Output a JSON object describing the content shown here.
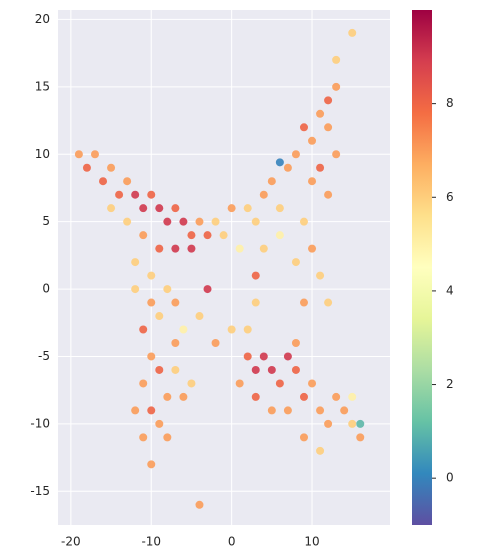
{
  "chart_data": {
    "type": "scatter",
    "x": [
      -19,
      -18,
      -17,
      -16,
      -15,
      -14,
      -13,
      -12,
      -11,
      -10,
      -9,
      -8,
      -7,
      -6,
      -5,
      -4,
      -3,
      -2,
      -13,
      -11,
      -9,
      -7,
      -5,
      -15,
      -12,
      -10,
      -12,
      -10,
      -9,
      -8,
      -7,
      -6,
      -11,
      -4,
      -10,
      -9,
      -11,
      -10,
      -9,
      -11,
      -10,
      -8,
      -7,
      -6,
      -5,
      -8,
      -7,
      -12,
      -4,
      2,
      3,
      4,
      5,
      6,
      7,
      8,
      9,
      10,
      11,
      12,
      13,
      13,
      15,
      12,
      10,
      11,
      9,
      12,
      13,
      4,
      6,
      8,
      10,
      11,
      12,
      9,
      6,
      0,
      -1,
      1,
      0,
      -2,
      2,
      3,
      -3,
      3,
      2,
      3,
      4,
      5,
      6,
      7,
      8,
      9,
      10,
      11,
      12,
      13,
      14,
      15,
      16,
      7,
      9,
      11,
      8,
      5,
      3,
      1,
      15,
      16
    ],
    "values": [
      10,
      9,
      10,
      8,
      9,
      7,
      8,
      7,
      6,
      7,
      6,
      5,
      6,
      5,
      4,
      5,
      4,
      5,
      5,
      4,
      3,
      3,
      3,
      6,
      2,
      1,
      0,
      -1,
      -2,
      0,
      -1,
      -3,
      -3,
      -2,
      -5,
      -6,
      -7,
      -9,
      -10,
      -11,
      -13,
      -8,
      -6,
      -8,
      -7,
      -11,
      -4,
      -9,
      -16,
      6,
      5,
      7,
      8,
      6,
      9,
      10,
      12,
      11,
      13,
      14,
      15,
      17,
      19,
      12,
      8,
      9,
      5,
      7,
      10,
      3,
      4,
      2,
      3,
      1,
      -1,
      -1,
      9.4,
      6,
      4,
      3,
      -3,
      -4,
      -3,
      -1,
      0,
      1,
      -5,
      -6,
      -5,
      -6,
      -7,
      -5,
      -6,
      -8,
      -7,
      -9,
      -10,
      -8,
      -9,
      -10,
      -11,
      -9,
      -11,
      -12,
      -4,
      -9,
      -8,
      -7,
      -8,
      -10
    ],
    "color_values": [
      7,
      8,
      7,
      8,
      7,
      8,
      7,
      9,
      9,
      8,
      9,
      9,
      8,
      9,
      8,
      7,
      8,
      6,
      6,
      7,
      8,
      9,
      9,
      6,
      6,
      6,
      6,
      7,
      6,
      6,
      7,
      5,
      8,
      6,
      7,
      8,
      7,
      8,
      7,
      7,
      7,
      7,
      6,
      7,
      6,
      7,
      7,
      7,
      7,
      6,
      6,
      7,
      7,
      6,
      7,
      7,
      8,
      7,
      7,
      8,
      7,
      6,
      6,
      7,
      7,
      8,
      6,
      7,
      7,
      6,
      5,
      6,
      7,
      6,
      6,
      7,
      0,
      7,
      6,
      5,
      6,
      7,
      6,
      6,
      9,
      8,
      8,
      9,
      9,
      9,
      8,
      9,
      8,
      8,
      7,
      7,
      7,
      7,
      7,
      6,
      7,
      7,
      7,
      6,
      7,
      7,
      8,
      7,
      5,
      1
    ],
    "colormap": "Spectral_r",
    "xlim": [
      -21.6,
      19.7
    ],
    "ylim": [
      -17.5,
      20.7
    ],
    "clim": [
      -1,
      10
    ],
    "xticks": [
      -20,
      -10,
      0,
      10
    ],
    "yticks": [
      -15,
      -10,
      -5,
      0,
      5,
      10,
      15,
      20
    ],
    "colorbar_ticks": [
      0,
      2,
      4,
      6,
      8
    ],
    "grid": true
  }
}
